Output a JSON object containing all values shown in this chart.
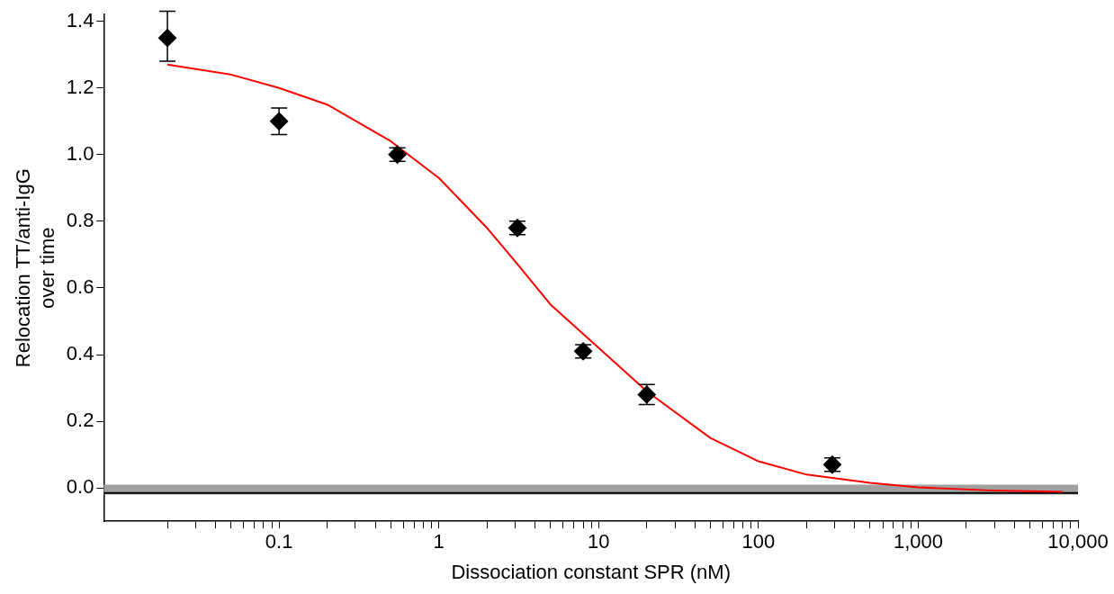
{
  "chart_data": {
    "type": "scatter",
    "xlabel": "Dissociation constant SPR (nM)",
    "ylabel": "Relocation TT/anti-IgG\nover time",
    "log": "x",
    "grid": false,
    "legend": false,
    "marker": "diamond",
    "xlim": [
      0.008,
      10000
    ],
    "ylim": [
      -0.1,
      1.42
    ],
    "xticks": [
      {
        "value": 0.02,
        "label": null
      },
      {
        "value": 0.03,
        "label": null
      },
      {
        "value": 0.04,
        "label": null
      },
      {
        "value": 0.05,
        "label": null
      },
      {
        "value": 0.06,
        "label": null
      },
      {
        "value": 0.07,
        "label": null
      },
      {
        "value": 0.08,
        "label": null
      },
      {
        "value": 0.09,
        "label": null
      },
      0.1,
      {
        "value": 0.2,
        "label": null
      },
      {
        "value": 0.3,
        "label": null
      },
      {
        "value": 0.4,
        "label": null
      },
      {
        "value": 0.5,
        "label": null
      },
      {
        "value": 0.6,
        "label": null
      },
      {
        "value": 0.7,
        "label": null
      },
      {
        "value": 0.8,
        "label": null
      },
      {
        "value": 0.9,
        "label": null
      },
      1,
      {
        "value": 2,
        "label": null
      },
      {
        "value": 3,
        "label": null
      },
      {
        "value": 4,
        "label": null
      },
      {
        "value": 5,
        "label": null
      },
      {
        "value": 6,
        "label": null
      },
      {
        "value": 7,
        "label": null
      },
      {
        "value": 8,
        "label": null
      },
      {
        "value": 9,
        "label": null
      },
      10,
      {
        "value": 20,
        "label": null
      },
      {
        "value": 30,
        "label": null
      },
      {
        "value": 40,
        "label": null
      },
      {
        "value": 50,
        "label": null
      },
      {
        "value": 60,
        "label": null
      },
      {
        "value": 70,
        "label": null
      },
      {
        "value": 80,
        "label": null
      },
      {
        "value": 90,
        "label": null
      },
      100,
      {
        "value": 200,
        "label": null
      },
      {
        "value": 300,
        "label": null
      },
      {
        "value": 400,
        "label": null
      },
      {
        "value": 500,
        "label": null
      },
      {
        "value": 600,
        "label": null
      },
      {
        "value": 700,
        "label": null
      },
      {
        "value": 800,
        "label": null
      },
      {
        "value": 900,
        "label": null
      },
      {
        "value": 1000,
        "label": "1,000"
      },
      {
        "value": 2000,
        "label": null
      },
      {
        "value": 3000,
        "label": null
      },
      {
        "value": 4000,
        "label": null
      },
      {
        "value": 5000,
        "label": null
      },
      {
        "value": 6000,
        "label": null
      },
      {
        "value": 7000,
        "label": null
      },
      {
        "value": 8000,
        "label": null
      },
      {
        "value": 9000,
        "label": null
      },
      {
        "value": 10000,
        "label": "10,000"
      }
    ],
    "yticks": [
      {
        "value": 0,
        "label": "0.0"
      },
      {
        "value": 0.2,
        "label": "0.2"
      },
      {
        "value": 0.4,
        "label": "0.4"
      },
      {
        "value": 0.6,
        "label": "0.6"
      },
      {
        "value": 0.8,
        "label": "0.8"
      },
      {
        "value": 1,
        "label": "1.0"
      },
      {
        "value": 1.2,
        "label": "1.2"
      },
      {
        "value": 1.4,
        "label": "1.4"
      }
    ],
    "bands": [
      {
        "axis": "y",
        "from": -0.02,
        "to": 0.01,
        "color": "#a0a0a0"
      }
    ],
    "ref_lines": [
      {
        "axis": "y",
        "value": -0.015,
        "color": "#000000"
      }
    ],
    "series": [
      {
        "type": "scatter",
        "color": "#000000",
        "x": [
          0.02,
          0.1,
          0.55,
          3.1,
          8,
          20,
          290
        ],
        "values": [
          1.35,
          1.1,
          1.0,
          0.78,
          0.41,
          0.28,
          0.07
        ],
        "errors": [
          [
            1.28,
            1.43
          ],
          [
            1.06,
            1.14
          ],
          [
            0.98,
            1.02
          ],
          [
            0.76,
            0.8
          ],
          [
            0.39,
            0.43
          ],
          [
            0.25,
            0.31
          ],
          [
            0.05,
            0.09
          ]
        ]
      },
      {
        "type": "line",
        "color": "#ff0000",
        "marker": "none",
        "x": [
          0.02,
          0.05,
          0.1,
          0.2,
          0.5,
          1,
          2,
          3,
          5,
          10,
          20,
          50,
          100,
          200,
          500,
          1000,
          3000,
          8000
        ],
        "values": [
          1.27,
          1.24,
          1.2,
          1.15,
          1.04,
          0.93,
          0.78,
          0.68,
          0.55,
          0.42,
          0.29,
          0.15,
          0.08,
          0.04,
          0.015,
          0.002,
          -0.008,
          -0.012
        ]
      }
    ]
  }
}
